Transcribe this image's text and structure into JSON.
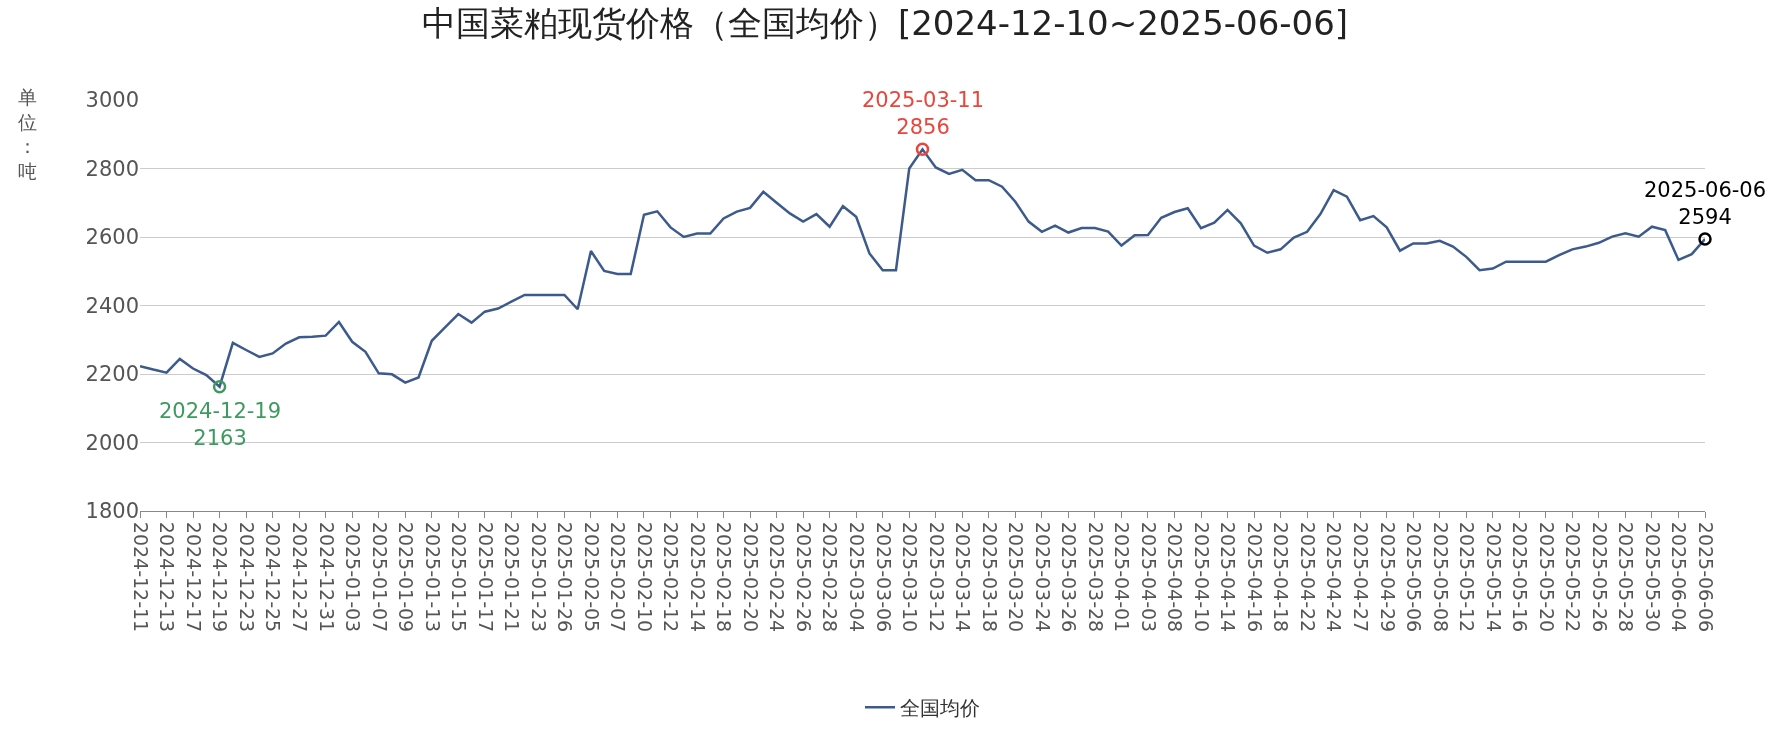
{
  "chart_data": {
    "type": "line",
    "title": "中国菜粕现货价格（全国均价）[2024-12-10~2025-06-06]",
    "ylabel": "单位：吨",
    "categories": [
      "2024-12-11",
      null,
      "2024-12-13",
      null,
      "2024-12-17",
      null,
      "2024-12-19",
      null,
      "2024-12-23",
      null,
      "2024-12-25",
      null,
      "2024-12-27",
      null,
      "2024-12-31",
      null,
      "2025-01-03",
      null,
      "2025-01-07",
      null,
      "2025-01-09",
      null,
      "2025-01-13",
      null,
      "2025-01-15",
      null,
      "2025-01-17",
      null,
      "2025-01-21",
      null,
      "2025-01-23",
      null,
      "2025-01-26",
      null,
      "2025-02-05",
      null,
      "2025-02-07",
      null,
      "2025-02-10",
      null,
      "2025-02-12",
      null,
      "2025-02-14",
      null,
      "2025-02-18",
      null,
      "2025-02-20",
      null,
      "2025-02-24",
      null,
      "2025-02-26",
      null,
      "2025-02-28",
      null,
      "2025-03-04",
      null,
      "2025-03-06",
      null,
      "2025-03-10",
      null,
      "2025-03-12",
      null,
      "2025-03-14",
      null,
      "2025-03-18",
      null,
      "2025-03-20",
      null,
      "2025-03-24",
      null,
      "2025-03-26",
      null,
      "2025-03-28",
      null,
      "2025-04-01",
      null,
      "2025-04-03",
      null,
      "2025-04-08",
      null,
      "2025-04-10",
      null,
      "2025-04-14",
      null,
      "2025-04-16",
      null,
      "2025-04-18",
      null,
      "2025-04-22",
      null,
      "2025-04-24",
      null,
      "2025-04-27",
      null,
      "2025-04-29",
      null,
      "2025-05-06",
      null,
      "2025-05-08",
      null,
      "2025-05-12",
      null,
      "2025-05-14",
      null,
      "2025-05-16",
      null,
      "2025-05-20",
      null,
      "2025-05-22",
      null,
      "2025-05-26",
      null,
      "2025-05-28",
      null,
      "2025-05-30",
      null,
      "2025-06-04",
      null,
      "2025-06-06"
    ],
    "series": [
      {
        "name": "全国均价",
        "color": "#3d5a8c",
        "values": [
          2223,
          2213,
          2204,
          2244,
          2216,
          2197,
          2163,
          2291,
          2270,
          2250,
          2260,
          2289,
          2307,
          2309,
          2312,
          2352,
          2294,
          2265,
          2202,
          2199,
          2175,
          2190,
          2297,
          2336,
          2375,
          2350,
          2382,
          2391,
          2411,
          2431,
          2431,
          2431,
          2431,
          2389,
          2559,
          2501,
          2492,
          2492,
          2665,
          2675,
          2628,
          2600,
          2610,
          2610,
          2654,
          2674,
          2685,
          2732,
          2700,
          2669,
          2645,
          2667,
          2630,
          2690,
          2659,
          2552,
          2503,
          2503,
          2800,
          2856,
          2803,
          2784,
          2796,
          2766,
          2766,
          2747,
          2703,
          2645,
          2615,
          2633,
          2613,
          2626,
          2626,
          2616,
          2575,
          2605,
          2606,
          2656,
          2673,
          2684,
          2626,
          2642,
          2679,
          2640,
          2575,
          2554,
          2564,
          2598,
          2615,
          2667,
          2737,
          2718,
          2649,
          2661,
          2628,
          2560,
          2581,
          2581,
          2589,
          2572,
          2542,
          2503,
          2508,
          2528,
          2528,
          2528,
          2528,
          2547,
          2564,
          2572,
          2583,
          2601,
          2611,
          2601,
          2630,
          2620,
          2533,
          2550,
          2594
        ]
      }
    ],
    "ylim": [
      1800,
      3000
    ],
    "yticks": [
      1800,
      2000,
      2200,
      2400,
      2600,
      2800,
      3000
    ],
    "grid": "y",
    "legend": "bottom",
    "marker": "none",
    "line_style": "solid",
    "annotations": [
      {
        "text": "2024-12-19\n2163",
        "x": "2024-12-19",
        "y": 2163
      },
      {
        "text": "2025-03-11\n2856",
        "y": 2856
      },
      {
        "text": "2025-06-06\n2594",
        "x": "2025-06-06",
        "y": 2594
      }
    ]
  }
}
